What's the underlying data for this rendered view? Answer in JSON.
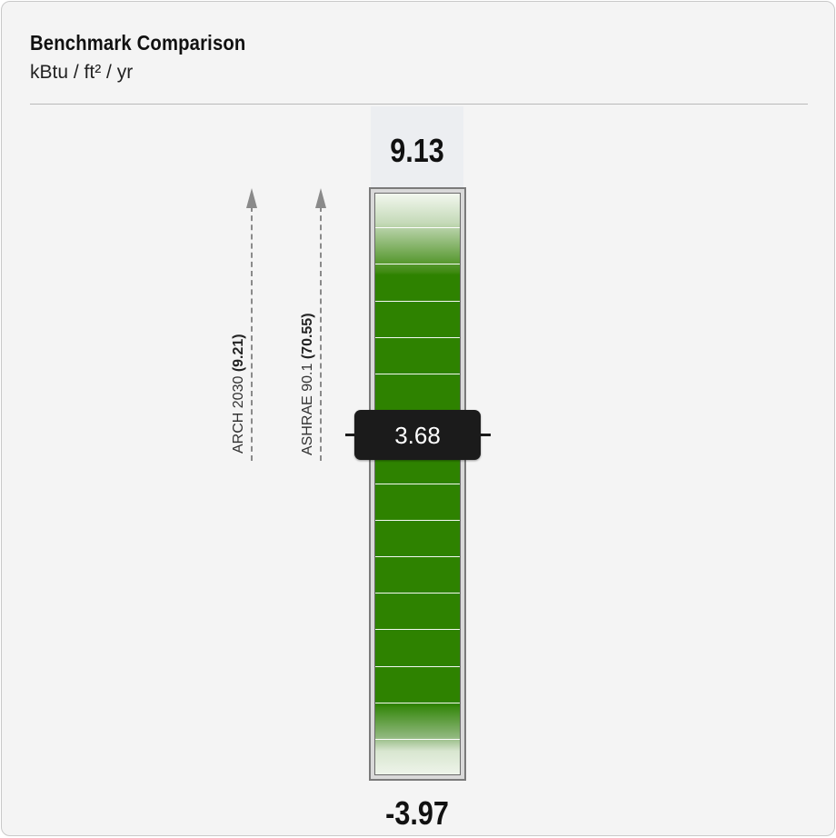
{
  "card": {
    "title": "Benchmark Comparison",
    "subtitle": "kBtu / ft² / yr"
  },
  "gauge": {
    "max_label": "9.13",
    "min_label": "-3.97",
    "current_value_label": "3.68",
    "fill_color": "#2e8200",
    "tick_count": 15
  },
  "benchmarks": [
    {
      "name": "ARCH 2030",
      "value": "(9.21)"
    },
    {
      "name": "ASHRAE 90.1",
      "value": "(70.55)"
    }
  ]
}
